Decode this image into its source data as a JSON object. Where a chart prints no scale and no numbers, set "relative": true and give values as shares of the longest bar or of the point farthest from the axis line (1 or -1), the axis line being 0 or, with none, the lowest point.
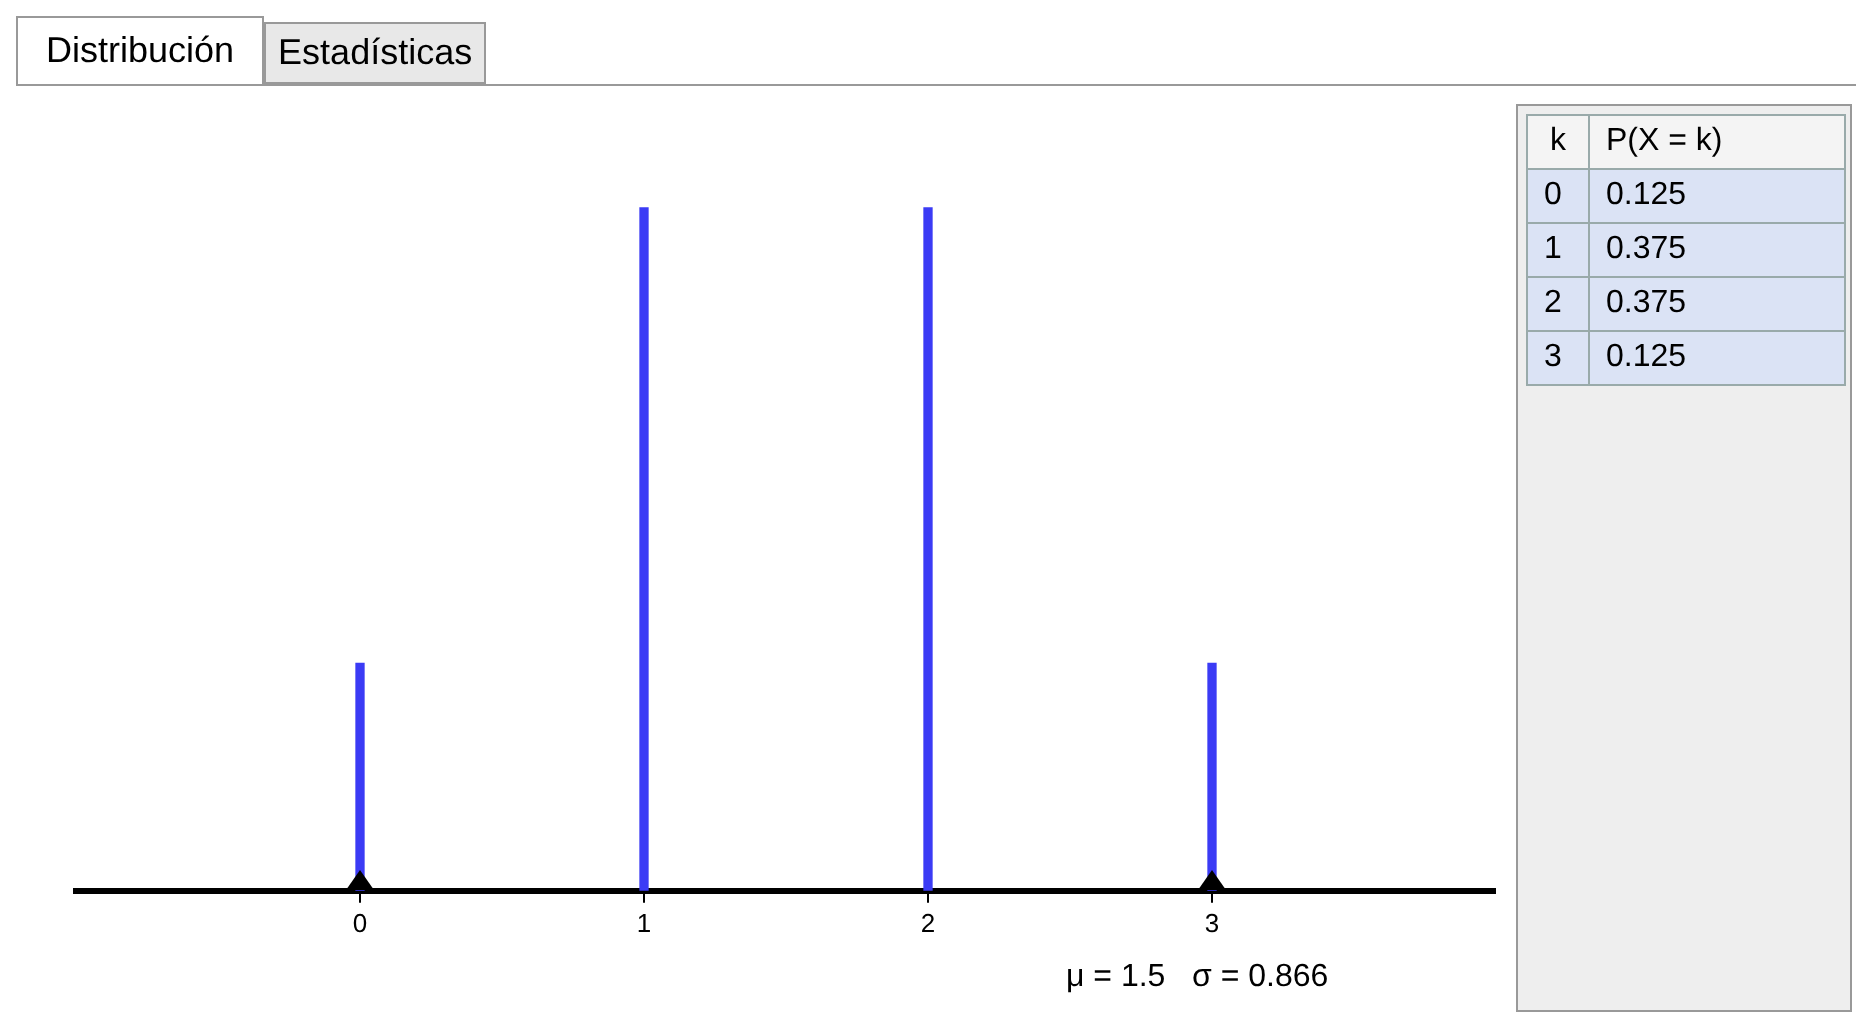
{
  "chart_data": [
    {
      "type": "bar",
      "x": [
        0,
        1,
        2,
        3
      ],
      "values": [
        0.333,
        1,
        1,
        0.333
      ],
      "relative": true,
      "color": "#3b3bf5",
      "xlim": [
        -1,
        4
      ],
      "xticks": [
        0,
        1,
        2,
        3
      ],
      "grid": false,
      "legend": false,
      "annotations": [
        "Distribución",
        "Estadísticas",
        "μ = 1.5   σ = 0.866"
      ]
    },
    {
      "type": "heatmap",
      "ylabel": "k",
      "categories": [
        "P(X = k)"
      ],
      "y_categories": [
        "0",
        "1",
        "2",
        "3"
      ],
      "cells": [
        [
          0.125
        ],
        [
          0.375
        ],
        [
          0.375
        ],
        [
          0.125
        ]
      ],
      "data_labels": true,
      "color": "#dbe3f5"
    }
  ]
}
